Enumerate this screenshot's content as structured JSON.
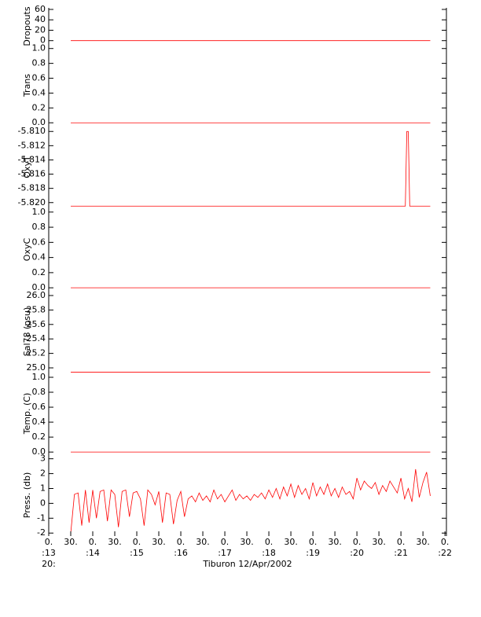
{
  "chart_data": [
    {
      "type": "line",
      "ylabel": "Dropouts",
      "color": "#ff0000",
      "xlim": [
        "13:00",
        "22:02"
      ],
      "ylim": [
        -8,
        63
      ],
      "yticks": [
        0,
        20,
        40,
        60
      ],
      "x": [
        "13:30",
        "21:40"
      ],
      "values": [
        0,
        0
      ]
    },
    {
      "type": "line",
      "ylabel": "Trans",
      "color": "#ff0000",
      "xlim": [
        "13:00",
        "22:02"
      ],
      "ylim": [
        -0.04,
        1.05
      ],
      "yticks": [
        {
          "value": 0,
          "label": "0.0"
        },
        {
          "value": 0.2,
          "label": "0.2"
        },
        {
          "value": 0.4,
          "label": "0.4"
        },
        {
          "value": 0.6,
          "label": "0.6"
        },
        {
          "value": 0.8,
          "label": "0.8"
        },
        {
          "value": 1,
          "label": "1.0"
        }
      ],
      "x": [
        "13:30",
        "21:40"
      ],
      "values": [
        0,
        0
      ]
    },
    {
      "type": "line",
      "ylabel": "OxyT",
      "color": "#ff0000",
      "xlim": [
        "13:00",
        "22:02"
      ],
      "ylim": [
        -5.8208,
        -5.8092
      ],
      "yticks": [
        {
          "value": -5.82,
          "label": "-5.820"
        },
        {
          "value": -5.818,
          "label": "-5.818"
        },
        {
          "value": -5.816,
          "label": "-5.816"
        },
        {
          "value": -5.814,
          "label": "-5.814"
        },
        {
          "value": -5.812,
          "label": "-5.812"
        },
        {
          "value": -5.81,
          "label": "-5.810"
        }
      ],
      "x": [
        "13:30",
        "21:06",
        "21:08",
        "21:10",
        "21:12",
        "21:40"
      ],
      "values": [
        -5.8205,
        -5.8205,
        -5.81,
        -5.81,
        -5.8205,
        -5.8205
      ]
    },
    {
      "type": "line",
      "ylabel": "OxyC",
      "color": "#ff0000",
      "xlim": [
        "13:00",
        "22:02"
      ],
      "ylim": [
        -0.04,
        1.05
      ],
      "yticks": [
        {
          "value": 0,
          "label": "0.0"
        },
        {
          "value": 0.2,
          "label": "0.2"
        },
        {
          "value": 0.4,
          "label": "0.4"
        },
        {
          "value": 0.6,
          "label": "0.6"
        },
        {
          "value": 0.8,
          "label": "0.8"
        },
        {
          "value": 1,
          "label": "1.0"
        }
      ],
      "x": [
        "13:30",
        "21:40"
      ],
      "values": [
        0,
        0
      ]
    },
    {
      "type": "line",
      "ylabel": "Sal78 (psu)",
      "color": "#ff0000",
      "xlim": [
        "13:00",
        "22:02"
      ],
      "ylim": [
        24.935,
        26.065
      ],
      "yticks": [
        {
          "value": 25,
          "label": "25.0"
        },
        {
          "value": 25.2,
          "label": "25.2"
        },
        {
          "value": 25.4,
          "label": "25.4"
        },
        {
          "value": 25.6,
          "label": "25.6"
        },
        {
          "value": 25.8,
          "label": "25.8"
        },
        {
          "value": 26,
          "label": "26.0"
        }
      ],
      "x": [
        "13:30",
        "21:40"
      ],
      "values": [
        24.94,
        24.94
      ]
    },
    {
      "type": "line",
      "ylabel": "Temp. (C)",
      "color": "#ff0000",
      "xlim": [
        "13:00",
        "22:02"
      ],
      "ylim": [
        -0.03,
        1.063
      ],
      "yticks": [
        {
          "value": 0,
          "label": "0.0"
        },
        {
          "value": 0.2,
          "label": "0.2"
        },
        {
          "value": 0.4,
          "label": "0.4"
        },
        {
          "value": 0.6,
          "label": "0.6"
        },
        {
          "value": 0.8,
          "label": "0.8"
        },
        {
          "value": 1,
          "label": "1.0"
        }
      ],
      "x": [
        "13:30",
        "21:40"
      ],
      "values": [
        0,
        0
      ]
    },
    {
      "type": "line",
      "ylabel": "Press. (db)",
      "color": "#ff0000",
      "xlim": [
        "13:00",
        "22:02"
      ],
      "ylim": [
        -2.2,
        3.3
      ],
      "yticks": [
        -2,
        -1,
        0,
        1,
        2,
        3
      ],
      "xticks": [
        {
          "value": "13:00",
          "label": "0."
        },
        {
          "value": "13:30",
          "label": "30."
        },
        {
          "value": "14:00",
          "label": "0."
        },
        {
          "value": "14:30",
          "label": "30."
        },
        {
          "value": "15:00",
          "label": "0."
        },
        {
          "value": "15:30",
          "label": "30."
        },
        {
          "value": "16:00",
          "label": "0."
        },
        {
          "value": "16:30",
          "label": "30."
        },
        {
          "value": "17:00",
          "label": "0."
        },
        {
          "value": "17:30",
          "label": "30."
        },
        {
          "value": "18:00",
          "label": "0."
        },
        {
          "value": "18:30",
          "label": "30."
        },
        {
          "value": "19:00",
          "label": "0."
        },
        {
          "value": "19:30",
          "label": "30."
        },
        {
          "value": "20:00",
          "label": "0."
        },
        {
          "value": "20:30",
          "label": "30."
        },
        {
          "value": "21:00",
          "label": "0."
        },
        {
          "value": "21:30",
          "label": "30."
        },
        {
          "value": "22:00",
          "label": "0."
        }
      ],
      "xtick_hours": [
        {
          "value": "13:00",
          "label": ":13"
        },
        {
          "value": "14:00",
          "label": ":14"
        },
        {
          "value": "15:00",
          "label": ":15"
        },
        {
          "value": "16:00",
          "label": ":16"
        },
        {
          "value": "17:00",
          "label": ":17"
        },
        {
          "value": "18:00",
          "label": ":18"
        },
        {
          "value": "19:00",
          "label": ":19"
        },
        {
          "value": "20:00",
          "label": ":20"
        },
        {
          "value": "21:00",
          "label": ":21"
        },
        {
          "value": "22:00",
          "label": ":22"
        }
      ],
      "xlabel_prefix": "20:",
      "xlabel": "Tiburon 12/Apr/2002",
      "x": [
        "13:30",
        "13:35",
        "13:40",
        "13:45",
        "13:50",
        "13:55",
        "14:00",
        "14:05",
        "14:10",
        "14:15",
        "14:20",
        "14:25",
        "14:30",
        "14:35",
        "14:40",
        "14:45",
        "14:50",
        "14:55",
        "15:00",
        "15:05",
        "15:10",
        "15:15",
        "15:20",
        "15:25",
        "15:30",
        "15:35",
        "15:40",
        "15:45",
        "15:50",
        "15:55",
        "16:00",
        "16:05",
        "16:10",
        "16:15",
        "16:20",
        "16:25",
        "16:30",
        "16:35",
        "16:40",
        "16:45",
        "16:50",
        "16:55",
        "17:00",
        "17:05",
        "17:10",
        "17:15",
        "17:20",
        "17:25",
        "17:30",
        "17:35",
        "17:40",
        "17:45",
        "17:50",
        "17:55",
        "18:00",
        "18:05",
        "18:10",
        "18:15",
        "18:20",
        "18:25",
        "18:30",
        "18:35",
        "18:40",
        "18:45",
        "18:50",
        "18:55",
        "19:00",
        "19:05",
        "19:10",
        "19:15",
        "19:20",
        "19:25",
        "19:30",
        "19:35",
        "19:40",
        "19:45",
        "19:50",
        "19:55",
        "20:00",
        "20:05",
        "20:10",
        "20:15",
        "20:20",
        "20:25",
        "20:30",
        "20:35",
        "20:40",
        "20:45",
        "20:50",
        "20:55",
        "21:00",
        "21:05",
        "21:10",
        "21:15",
        "21:20",
        "21:25",
        "21:30",
        "21:35",
        "21:40"
      ],
      "values": [
        -2.0,
        0.6,
        0.7,
        -1.5,
        0.9,
        -1.3,
        0.9,
        -1.0,
        0.8,
        0.9,
        -1.2,
        0.9,
        0.6,
        -1.6,
        0.8,
        0.9,
        -0.9,
        0.7,
        0.8,
        0.3,
        -1.5,
        0.9,
        0.6,
        -0.1,
        0.8,
        -1.3,
        0.7,
        0.6,
        -1.4,
        0.2,
        0.8,
        -0.9,
        0.3,
        0.5,
        0.1,
        0.7,
        0.2,
        0.5,
        0.1,
        0.9,
        0.3,
        0.6,
        0.1,
        0.5,
        0.9,
        0.2,
        0.6,
        0.3,
        0.5,
        0.2,
        0.6,
        0.4,
        0.7,
        0.3,
        0.9,
        0.4,
        1.0,
        0.3,
        1.1,
        0.5,
        1.3,
        0.4,
        1.2,
        0.6,
        1.0,
        0.3,
        1.4,
        0.5,
        1.1,
        0.6,
        1.3,
        0.5,
        1.0,
        0.4,
        1.1,
        0.6,
        0.8,
        0.3,
        1.7,
        0.9,
        1.5,
        1.2,
        1.0,
        1.4,
        0.6,
        1.2,
        0.8,
        1.5,
        1.1,
        0.7,
        1.7,
        0.3,
        1.0,
        0.1,
        2.3,
        0.4,
        1.4,
        2.1,
        0.5
      ]
    }
  ]
}
